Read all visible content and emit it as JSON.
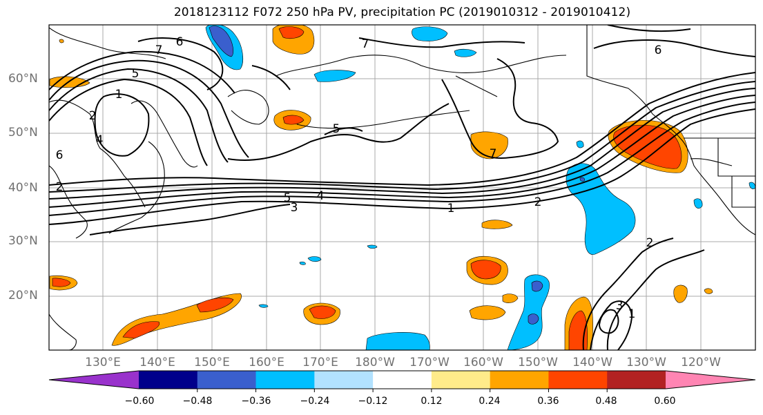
{
  "title": "2018123112 F072 250 hPa PV, precipitation PC (2019010312 - 2019010412)",
  "lat_labels": [
    "60°N",
    "50°N",
    "40°N",
    "30°N",
    "20°N"
  ],
  "lon_labels": [
    "130°E",
    "140°E",
    "150°E",
    "160°E",
    "170°E",
    "180°W",
    "170°W",
    "160°W",
    "150°W",
    "140°W",
    "130°W",
    "120°W"
  ],
  "colorbar": {
    "ticks": [
      "−0.60",
      "−0.48",
      "−0.36",
      "−0.24",
      "−0.12",
      "0.12",
      "0.24",
      "0.36",
      "0.48",
      "0.60"
    ],
    "colors": [
      "#9932cc",
      "#00008b",
      "#3a5fcd",
      "#00bfff",
      "#b2e2ff",
      "#ffffff",
      "#ffeb8a",
      "#ffa500",
      "#ff4500",
      "#b22222",
      "#ff85b3"
    ]
  },
  "pv_contour_labels": [
    "1",
    "2",
    "3",
    "4",
    "5",
    "6",
    "7"
  ],
  "contour_labels_shown": [
    {
      "text": "7"
    },
    {
      "text": "6"
    },
    {
      "text": "5"
    },
    {
      "text": "1"
    },
    {
      "text": "2"
    },
    {
      "text": "4"
    },
    {
      "text": "6"
    },
    {
      "text": "5"
    },
    {
      "text": "3"
    },
    {
      "text": "4"
    },
    {
      "text": "1"
    },
    {
      "text": "2"
    },
    {
      "text": "7"
    },
    {
      "text": "5"
    },
    {
      "text": "7"
    },
    {
      "text": "6"
    },
    {
      "text": "2"
    },
    {
      "text": "1"
    },
    {
      "text": "3"
    },
    {
      "text": "2"
    }
  ]
}
